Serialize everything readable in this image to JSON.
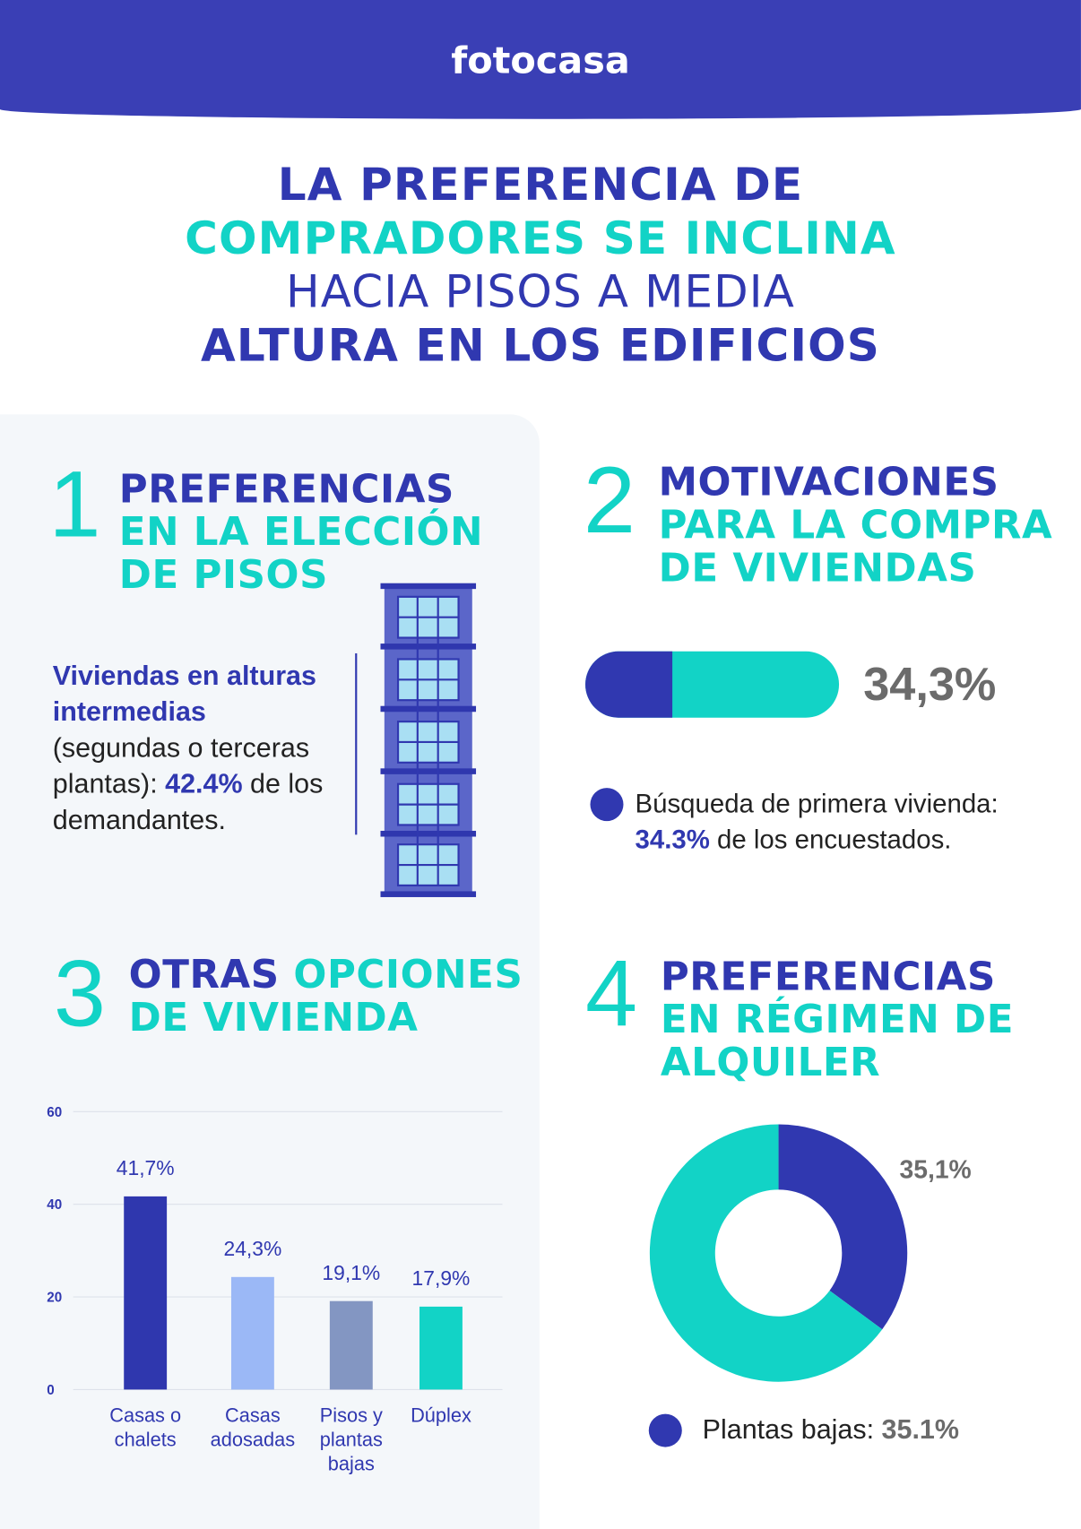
{
  "header": {
    "logo": "fotocasa"
  },
  "title": {
    "lines": [
      "LA PREFERENCIA DE",
      "COMPRADORES SE INCLINA",
      "HACIA PISOS A MEDIA",
      "ALTURA EN LOS EDIFICIOS"
    ]
  },
  "sections": [
    {
      "number": "1",
      "heading": [
        "PREFERENCIAS",
        "EN LA ELECCIÓN",
        "DE PISOS"
      ],
      "body": [
        "Viviendas en alturas intermedias",
        "(segundas o terceras plantas): ",
        "42.4%",
        " de los demandantes."
      ]
    },
    {
      "number": "2",
      "heading": [
        "MOTIVACIONES",
        "PARA LA COMPRA",
        "DE VIVIENDAS"
      ],
      "body": [
        "Búsqueda de primera vivienda: ",
        "34.3%",
        " de los encuestados."
      ]
    },
    {
      "number": "3",
      "heading": [
        "OTRAS",
        "OPCIONES",
        "DE VIVIENDA"
      ]
    },
    {
      "number": "4",
      "heading": [
        "PREFERENCIAS",
        "EN RÉGIMEN DE",
        "ALQUILER"
      ],
      "body": [
        "Plantas bajas: ",
        "35.1%"
      ]
    }
  ],
  "chart_data": [
    {
      "type": "progress",
      "values": [
        34.3
      ],
      "value_labels": [
        "34,3%"
      ],
      "xlim": [
        0,
        100
      ],
      "colors": [
        "#3038b0",
        "#12d3c6"
      ]
    },
    {
      "type": "bar",
      "categories": [
        "Casas o chalets",
        "Casas adosadas",
        "Pisos y plantas bajas",
        "Dúplex"
      ],
      "values": [
        41.7,
        24.3,
        19.1,
        17.9
      ],
      "value_labels": [
        "41,7%",
        "24,3%",
        "19,1%",
        "17,9%"
      ],
      "colors": [
        "#2f37ae",
        "#9bb8f6",
        "#8396c2",
        "#12d3c6"
      ],
      "ylim": [
        0,
        60
      ],
      "yticks": [
        0,
        20,
        40,
        60
      ],
      "grid": true
    },
    {
      "type": "donut",
      "categories": [
        "Plantas bajas",
        null
      ],
      "values": [
        35.1,
        64.9
      ],
      "value_labels": [
        "35,1%",
        null
      ],
      "colors": [
        "#3038b0",
        "#12d3c6"
      ]
    }
  ]
}
